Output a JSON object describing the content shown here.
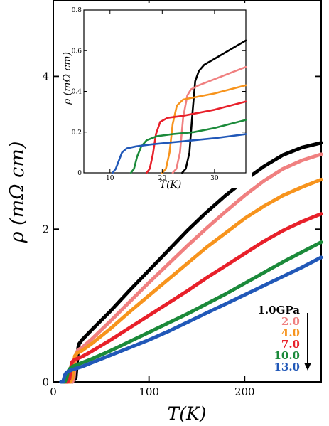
{
  "chart_data": [
    {
      "type": "line",
      "xlabel": "T(K)",
      "ylabel": "ρ (mΩ cm)",
      "xlim": [
        0,
        280
      ],
      "ylim": [
        0,
        5.0
      ],
      "xticks": [
        0,
        100,
        200
      ],
      "yticks": [
        0,
        2,
        4
      ],
      "legend_position": "bottom-right",
      "legend_arrow": "down",
      "series": [
        {
          "name": "1.0GPa",
          "color": "#000000",
          "onset": 24,
          "x": [
            10,
            20,
            23.5,
            25,
            26,
            27,
            30,
            40,
            60,
            80,
            100,
            120,
            140,
            160,
            180,
            200,
            220,
            240,
            260,
            280
          ],
          "y": [
            0,
            0,
            0.05,
            0.28,
            0.45,
            0.5,
            0.55,
            0.68,
            0.93,
            1.2,
            1.46,
            1.72,
            1.98,
            2.22,
            2.44,
            2.64,
            2.82,
            2.97,
            3.07,
            3.13
          ]
        },
        {
          "name": "2.0",
          "color": "#f08080",
          "onset": 22,
          "x": [
            10,
            20,
            21.5,
            23,
            24,
            26,
            30,
            40,
            60,
            80,
            100,
            120,
            140,
            160,
            180,
            200,
            220,
            240,
            260,
            280
          ],
          "y": [
            0,
            0,
            0.05,
            0.26,
            0.38,
            0.42,
            0.45,
            0.56,
            0.8,
            1.05,
            1.3,
            1.54,
            1.78,
            2.01,
            2.23,
            2.44,
            2.63,
            2.79,
            2.9,
            2.98
          ]
        },
        {
          "name": "4.0",
          "color": "#f7941d",
          "onset": 20,
          "x": [
            10,
            18,
            20,
            21.5,
            22.5,
            25,
            30,
            40,
            60,
            80,
            100,
            120,
            140,
            160,
            180,
            200,
            220,
            240,
            260,
            280
          ],
          "y": [
            0,
            0,
            0.05,
            0.24,
            0.34,
            0.38,
            0.41,
            0.5,
            0.7,
            0.92,
            1.13,
            1.34,
            1.55,
            1.76,
            1.95,
            2.14,
            2.3,
            2.44,
            2.55,
            2.65
          ]
        },
        {
          "name": "7.0",
          "color": "#e8202a",
          "onset": 17,
          "x": [
            10,
            15,
            17,
            18.5,
            19.5,
            22,
            30,
            40,
            60,
            80,
            100,
            120,
            140,
            160,
            180,
            200,
            220,
            240,
            260,
            280
          ],
          "y": [
            0,
            0,
            0.04,
            0.2,
            0.26,
            0.29,
            0.33,
            0.4,
            0.55,
            0.71,
            0.87,
            1.03,
            1.19,
            1.36,
            1.52,
            1.68,
            1.84,
            1.98,
            2.1,
            2.2
          ]
        },
        {
          "name": "10.0",
          "color": "#1b8a3a",
          "onset": 14,
          "x": [
            10,
            12,
            14,
            15.5,
            17,
            20,
            30,
            40,
            60,
            80,
            100,
            120,
            140,
            160,
            180,
            200,
            220,
            240,
            260,
            280
          ],
          "y": [
            0,
            0,
            0.05,
            0.14,
            0.17,
            0.2,
            0.25,
            0.3,
            0.41,
            0.53,
            0.65,
            0.77,
            0.89,
            1.02,
            1.15,
            1.29,
            1.43,
            1.57,
            1.7,
            1.83
          ]
        },
        {
          "name": "13.0",
          "color": "#2158b8",
          "onset": 11,
          "x": [
            8,
            10,
            11,
            12,
            13.5,
            16,
            20,
            30,
            40,
            60,
            80,
            100,
            120,
            140,
            160,
            180,
            200,
            220,
            240,
            260,
            280
          ],
          "y": [
            0,
            0,
            0.04,
            0.09,
            0.12,
            0.14,
            0.16,
            0.2,
            0.25,
            0.35,
            0.45,
            0.55,
            0.66,
            0.78,
            0.9,
            1.02,
            1.14,
            1.26,
            1.38,
            1.5,
            1.63
          ]
        }
      ]
    },
    {
      "type": "line",
      "inset": true,
      "xlabel": "T(K)",
      "ylabel": "ρ (mΩ cm)",
      "xlim": [
        5,
        36
      ],
      "ylim": [
        0,
        0.8
      ],
      "xticks": [
        10,
        20,
        30
      ],
      "yticks": [
        0,
        0.2,
        0.4,
        0.6,
        0.8
      ],
      "ytick_labels": [
        "0",
        "0.2",
        "0.4",
        "0.6",
        "0.8"
      ],
      "series": [
        {
          "name": "1.0GPa",
          "color": "#000000",
          "x": [
            23.8,
            24.5,
            25.2,
            25.8,
            26.3,
            27,
            28,
            30,
            32,
            34,
            36
          ],
          "y": [
            0,
            0.02,
            0.1,
            0.3,
            0.45,
            0.5,
            0.53,
            0.56,
            0.59,
            0.62,
            0.65
          ]
        },
        {
          "name": "2.0",
          "color": "#f08080",
          "x": [
            22,
            22.7,
            23.4,
            24,
            24.8,
            25.5,
            27,
            30,
            33,
            36
          ],
          "y": [
            0,
            0.02,
            0.1,
            0.27,
            0.38,
            0.41,
            0.43,
            0.46,
            0.49,
            0.52
          ]
        },
        {
          "name": "4.0",
          "color": "#f7941d",
          "x": [
            20,
            20.7,
            21.4,
            22,
            22.8,
            24,
            26,
            30,
            33,
            36
          ],
          "y": [
            0,
            0.02,
            0.1,
            0.24,
            0.33,
            0.36,
            0.37,
            0.39,
            0.41,
            0.43
          ]
        },
        {
          "name": "7.0",
          "color": "#e8202a",
          "x": [
            17,
            17.6,
            18.2,
            18.8,
            19.6,
            21,
            24,
            30,
            33,
            36
          ],
          "y": [
            0,
            0.02,
            0.09,
            0.19,
            0.25,
            0.27,
            0.28,
            0.31,
            0.33,
            0.35
          ]
        },
        {
          "name": "10.0",
          "color": "#1b8a3a",
          "x": [
            14,
            14.6,
            15.2,
            16,
            17,
            19,
            22,
            26,
            30,
            33,
            36
          ],
          "y": [
            0,
            0.02,
            0.08,
            0.13,
            0.16,
            0.18,
            0.19,
            0.2,
            0.22,
            0.24,
            0.26
          ]
        },
        {
          "name": "13.0",
          "color": "#2158b8",
          "x": [
            10.5,
            11.1,
            11.7,
            12.3,
            13.2,
            15,
            18,
            22,
            26,
            30,
            33,
            36
          ],
          "y": [
            0,
            0.02,
            0.06,
            0.1,
            0.12,
            0.13,
            0.14,
            0.15,
            0.16,
            0.17,
            0.18,
            0.19
          ]
        }
      ]
    }
  ]
}
